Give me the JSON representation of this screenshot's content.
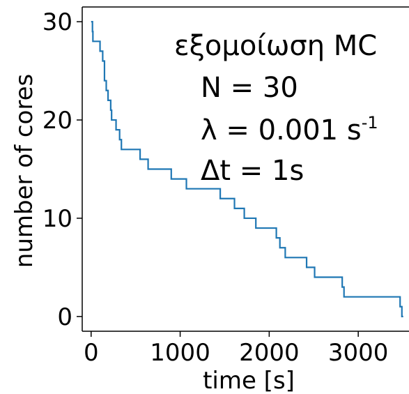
{
  "chart_data": {
    "type": "line",
    "drawstyle": "steps-post",
    "xlabel": "time [s]",
    "ylabel": "number of cores",
    "xlim": [
      -100,
      3570
    ],
    "ylim": [
      -1.5,
      31.5
    ],
    "xticks": [
      0,
      1000,
      2000,
      3000
    ],
    "yticks": [
      0,
      10,
      20,
      30
    ],
    "grid": false,
    "line_color": "#1f77b4",
    "annotations": {
      "line1": "εξομοίωση MC",
      "line2": "N = 30",
      "line3_main": "λ  = 0.001 s",
      "line3_sup": "-1",
      "line4": "Δt = 1s"
    },
    "series": [
      {
        "x": [
          0,
          15,
          20,
          100,
          130,
          150,
          170,
          190,
          220,
          230,
          250,
          280,
          320,
          340,
          550,
          640,
          900,
          1070,
          1170,
          1450,
          1610,
          1720,
          1850,
          2080,
          2120,
          2180,
          2420,
          2510,
          2800,
          2820,
          2840,
          3470,
          3490,
          3505
        ],
        "y": [
          30,
          29,
          28,
          27,
          26,
          24,
          23,
          22,
          21,
          20,
          20,
          19,
          18,
          17,
          16,
          15,
          14,
          13,
          13,
          12,
          11,
          10,
          9,
          8,
          7,
          6,
          5,
          4,
          4,
          3,
          2,
          1,
          0,
          0
        ]
      }
    ]
  }
}
